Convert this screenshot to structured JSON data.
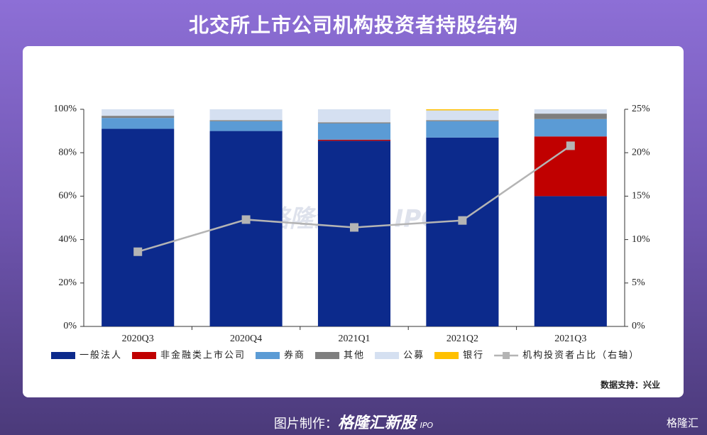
{
  "header": {
    "title": "北交所上市公司机构投资者持股结构"
  },
  "chart_data": {
    "type": "bar",
    "stacked": true,
    "categories": [
      "2020Q3",
      "2020Q4",
      "2021Q1",
      "2021Q2",
      "2021Q3"
    ],
    "series": [
      {
        "name": "一般法人",
        "color": "#0c2a8c",
        "values": [
          91,
          90,
          85.5,
          87,
          60
        ]
      },
      {
        "name": "非金融类上市公司",
        "color": "#c00000",
        "values": [
          0,
          0,
          0.5,
          0,
          27.5
        ]
      },
      {
        "name": "券商",
        "color": "#5b9bd5",
        "values": [
          5,
          4.5,
          7.5,
          7.5,
          8
        ]
      },
      {
        "name": "其他",
        "color": "#7f7f7f",
        "values": [
          1,
          0.5,
          0.5,
          0.5,
          2.5
        ]
      },
      {
        "name": "公募",
        "color": "#d5e0f1",
        "values": [
          3,
          5,
          6,
          4.5,
          2
        ]
      },
      {
        "name": "银行",
        "color": "#ffc000",
        "values": [
          0,
          0,
          0,
          0.5,
          0
        ]
      },
      {
        "name": "机构投资者占比（右轴）",
        "type": "line",
        "axis": "y2",
        "color": "#b4b4b4",
        "values": [
          8.6,
          12.3,
          11.4,
          12.2,
          20.8
        ]
      }
    ],
    "ylim": [
      0,
      100
    ],
    "yticks": [
      {
        "value": 0,
        "label": "0%"
      },
      {
        "value": 20,
        "label": "20%"
      },
      {
        "value": 40,
        "label": "40%"
      },
      {
        "value": 60,
        "label": "60%"
      },
      {
        "value": 80,
        "label": "80%"
      },
      {
        "value": 100,
        "label": "100%"
      }
    ],
    "y2lim": [
      0,
      25
    ],
    "y2ticks": [
      {
        "value": 0,
        "label": "0%"
      },
      {
        "value": 5,
        "label": "5%"
      },
      {
        "value": 10,
        "label": "10%"
      },
      {
        "value": 15,
        "label": "15%"
      },
      {
        "value": 20,
        "label": "20%"
      },
      {
        "value": 25,
        "label": "25%"
      }
    ],
    "legend": "bottom",
    "grid": false,
    "source": "数据支持：兴业",
    "watermark": "格隆汇新股 IPO"
  },
  "footer": {
    "credit": "图片制作：",
    "brand": "格隆汇新股",
    "brand_tag": "IPO",
    "logo": "格隆汇"
  }
}
